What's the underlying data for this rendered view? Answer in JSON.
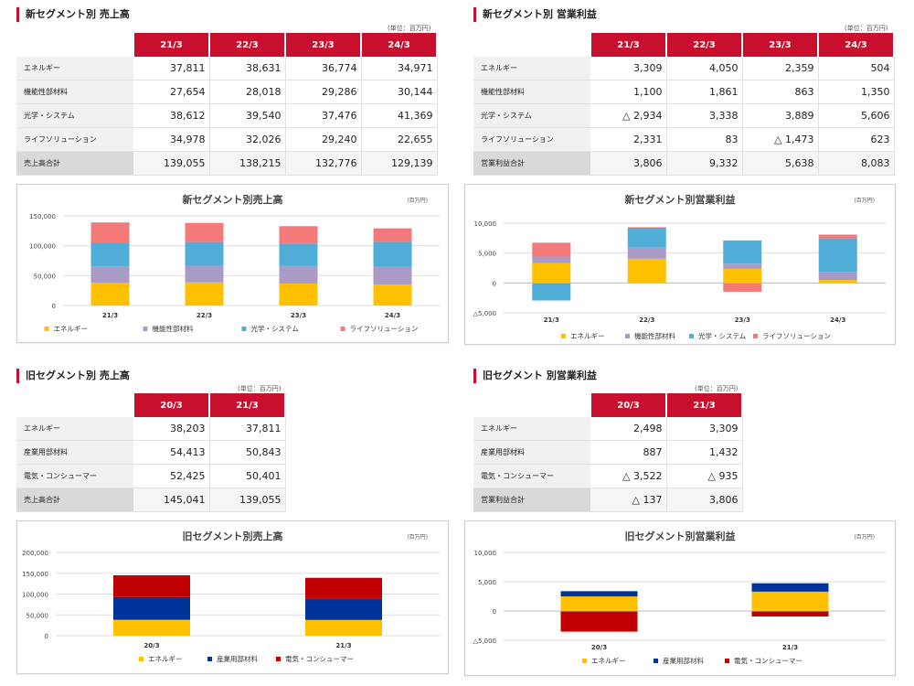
{
  "colors": {
    "accent": "#c8102e",
    "energy": "#ffc000",
    "functional": "#a99bc6",
    "optical": "#4fadd8",
    "life": "#f47a7a",
    "industrial": "#00349b",
    "electrical": "#c00000"
  },
  "quadrants": [
    {
      "id": "new-sales",
      "title": "新セグメント別 売上高",
      "unit": "(単位：百万円)",
      "columns": [
        "21/3",
        "22/3",
        "23/3",
        "24/3"
      ],
      "rows": [
        {
          "label": "エネルギー",
          "values": [
            "37,811",
            "38,631",
            "36,774",
            "34,971"
          ]
        },
        {
          "label": "機能性部材料",
          "values": [
            "27,654",
            "28,018",
            "29,286",
            "30,144"
          ]
        },
        {
          "label": "光学・システム",
          "values": [
            "38,612",
            "39,540",
            "37,476",
            "41,369"
          ]
        },
        {
          "label": "ライフソリューション",
          "values": [
            "34,978",
            "32,026",
            "29,240",
            "22,655"
          ]
        }
      ],
      "total": {
        "label": "売上高合計",
        "values": [
          "139,055",
          "138,215",
          "132,776",
          "129,139"
        ]
      }
    },
    {
      "id": "new-profit",
      "title": "新セグメント別 営業利益",
      "unit": "(単位：百万円)",
      "columns": [
        "21/3",
        "22/3",
        "23/3",
        "24/3"
      ],
      "rows": [
        {
          "label": "エネルギー",
          "values": [
            "3,309",
            "4,050",
            "2,359",
            "504"
          ]
        },
        {
          "label": "機能性部材料",
          "values": [
            "1,100",
            "1,861",
            "863",
            "1,350"
          ]
        },
        {
          "label": "光学・システム",
          "values": [
            "△ 2,934",
            "3,338",
            "3,889",
            "5,606"
          ]
        },
        {
          "label": "ライフソリューション",
          "values": [
            "2,331",
            "83",
            "△ 1,473",
            "623"
          ]
        }
      ],
      "total": {
        "label": "営業利益合計",
        "values": [
          "3,806",
          "9,332",
          "5,638",
          "8,083"
        ]
      }
    },
    {
      "id": "old-sales",
      "title": "旧セグメント別 売上高",
      "unit": "(単位：百万円)",
      "columns": [
        "20/3",
        "21/3"
      ],
      "rows": [
        {
          "label": "エネルギー",
          "values": [
            "38,203",
            "37,811"
          ]
        },
        {
          "label": "産業用部材料",
          "values": [
            "54,413",
            "50,843"
          ]
        },
        {
          "label": "電気・コンシューマー",
          "values": [
            "52,425",
            "50,401"
          ]
        }
      ],
      "total": {
        "label": "売上高合計",
        "values": [
          "145,041",
          "139,055"
        ]
      }
    },
    {
      "id": "old-profit",
      "title": "旧セグメント 別営業利益",
      "unit": "(単位：百万円)",
      "columns": [
        "20/3",
        "21/3"
      ],
      "rows": [
        {
          "label": "エネルギー",
          "values": [
            "2,498",
            "3,309"
          ]
        },
        {
          "label": "産業用部材料",
          "values": [
            "887",
            "1,432"
          ]
        },
        {
          "label": "電気・コンシューマー",
          "values": [
            "△ 3,522",
            "△ 935"
          ]
        }
      ],
      "total": {
        "label": "営業利益合計",
        "values": [
          "△ 137",
          "3,806"
        ]
      }
    }
  ],
  "chart_data": [
    {
      "id": "new-sales-chart",
      "type": "bar",
      "stacked": true,
      "title": "新セグメント別売上高",
      "unit": "(百万円)",
      "categories": [
        "21/3",
        "22/3",
        "23/3",
        "24/3"
      ],
      "yticks": [
        0,
        50000,
        100000,
        150000
      ],
      "ytick_labels": [
        "0",
        "50,000",
        "100,000",
        "150,000"
      ],
      "ylim": [
        0,
        150000
      ],
      "series": [
        {
          "name": "エネルギー",
          "color": "#ffc000",
          "values": [
            37811,
            38631,
            36774,
            34971
          ]
        },
        {
          "name": "機能性部材料",
          "color": "#a99bc6",
          "values": [
            27654,
            28018,
            29286,
            30144
          ]
        },
        {
          "name": "光学・システム",
          "color": "#4fadd8",
          "values": [
            38612,
            39540,
            37476,
            41369
          ]
        },
        {
          "name": "ライフソリューション",
          "color": "#f47a7a",
          "values": [
            34978,
            32026,
            29240,
            22655
          ]
        }
      ],
      "legend": "bottom"
    },
    {
      "id": "new-profit-chart",
      "type": "bar",
      "stacked": true,
      "title": "新セグメント別営業利益",
      "unit": "(百万円)",
      "categories": [
        "21/3",
        "22/3",
        "23/3",
        "24/3"
      ],
      "yticks": [
        -5000,
        0,
        5000,
        10000
      ],
      "ytick_labels": [
        "△5,000",
        "0",
        "5,000",
        "10,000"
      ],
      "ylim": [
        -5000,
        10000
      ],
      "series": [
        {
          "name": "エネルギー",
          "color": "#ffc000",
          "values": [
            3309,
            4050,
            2359,
            504
          ]
        },
        {
          "name": "機能性部材料",
          "color": "#a99bc6",
          "values": [
            1100,
            1861,
            863,
            1350
          ]
        },
        {
          "name": "光学・システム",
          "color": "#4fadd8",
          "values": [
            -2934,
            3338,
            3889,
            5606
          ]
        },
        {
          "name": "ライフソリューション",
          "color": "#f47a7a",
          "values": [
            2331,
            83,
            -1473,
            623
          ]
        }
      ],
      "legend": "bottom"
    },
    {
      "id": "old-sales-chart",
      "type": "bar",
      "stacked": true,
      "title": "旧セグメント別売上高",
      "unit": "(百万円)",
      "categories": [
        "20/3",
        "21/3"
      ],
      "yticks": [
        0,
        50000,
        100000,
        150000,
        200000
      ],
      "ytick_labels": [
        "0",
        "50,000",
        "100,000",
        "150,000",
        "200,000"
      ],
      "ylim": [
        0,
        200000
      ],
      "series": [
        {
          "name": "エネルギー",
          "color": "#ffc000",
          "values": [
            38203,
            37811
          ]
        },
        {
          "name": "産業用部材料",
          "color": "#00349b",
          "values": [
            54413,
            50843
          ]
        },
        {
          "name": "電気・コンシューマー",
          "color": "#c00000",
          "values": [
            52425,
            50401
          ]
        }
      ],
      "legend": "bottom"
    },
    {
      "id": "old-profit-chart",
      "type": "bar",
      "stacked": true,
      "title": "旧セグメント別営業利益",
      "unit": "(百万円)",
      "categories": [
        "20/3",
        "21/3"
      ],
      "yticks": [
        -5000,
        0,
        5000,
        10000
      ],
      "ytick_labels": [
        "△5,000",
        "0",
        "5,000",
        "10,000"
      ],
      "ylim": [
        -5000,
        10000
      ],
      "series": [
        {
          "name": "エネルギー",
          "color": "#ffc000",
          "values": [
            2498,
            3309
          ]
        },
        {
          "name": "産業用部材料",
          "color": "#00349b",
          "values": [
            887,
            1432
          ]
        },
        {
          "name": "電気・コンシューマー",
          "color": "#c00000",
          "values": [
            -3522,
            -935
          ]
        }
      ],
      "legend": "bottom"
    }
  ]
}
